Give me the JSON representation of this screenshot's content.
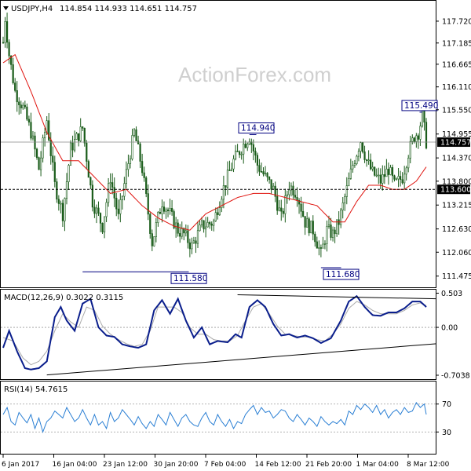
{
  "window": {
    "symbol_header": "USDJPY,H4",
    "ohlc": "114.854 114.933 114.651 114.757",
    "watermark": "ActionForex.com"
  },
  "chart_data": [
    {
      "type": "candlestick",
      "title": "USDJPY,H4",
      "ohlc_text": "114.854 114.933 114.651 114.757",
      "ylim": [
        111.2,
        118.2
      ],
      "y_ticks": [
        "117.720",
        "117.185",
        "116.665",
        "116.110",
        "115.550",
        "114.955",
        "114.370",
        "113.800",
        "113.215",
        "112.630",
        "112.060",
        "111.475"
      ],
      "x_ticks": [
        "6 Jan 2017",
        "16 Jan 04:00",
        "23 Jan 12:00",
        "30 Jan 20:00",
        "7 Feb 04:00",
        "14 Feb 12:00",
        "21 Feb 20:00",
        "1 Mar 04:00",
        "8 Mar 12:00"
      ],
      "price_anchors": [
        [
          0,
          117.2
        ],
        [
          1,
          117.8
        ],
        [
          3,
          116.9
        ],
        [
          6,
          116.0
        ],
        [
          10,
          115.6
        ],
        [
          14,
          115.0
        ],
        [
          18,
          114.1
        ],
        [
          22,
          115.3
        ],
        [
          26,
          113.7
        ],
        [
          30,
          113.0
        ],
        [
          34,
          114.6
        ],
        [
          40,
          115.1
        ],
        [
          45,
          113.3
        ],
        [
          50,
          112.7
        ],
        [
          54,
          113.9
        ],
        [
          58,
          112.9
        ],
        [
          62,
          114.0
        ],
        [
          66,
          115.0
        ],
        [
          70,
          114.1
        ],
        [
          75,
          112.3
        ],
        [
          80,
          113.3
        ],
        [
          84,
          113.0
        ],
        [
          88,
          112.6
        ],
        [
          91,
          112.5
        ],
        [
          95,
          112.2
        ],
        [
          100,
          112.7
        ],
        [
          106,
          112.8
        ],
        [
          110,
          113.5
        ],
        [
          116,
          114.3
        ],
        [
          121,
          114.7
        ],
        [
          124,
          114.9
        ],
        [
          128,
          114.2
        ],
        [
          132,
          113.9
        ],
        [
          136,
          113.6
        ],
        [
          140,
          112.9
        ],
        [
          144,
          113.7
        ],
        [
          148,
          113.5
        ],
        [
          152,
          112.8
        ],
        [
          156,
          112.6
        ],
        [
          160,
          112.0
        ],
        [
          163,
          112.6
        ],
        [
          166,
          112.5
        ],
        [
          169,
          112.8
        ],
        [
          173,
          113.6
        ],
        [
          176,
          114.2
        ],
        [
          180,
          114.8
        ],
        [
          183,
          114.3
        ],
        [
          186,
          114.0
        ],
        [
          190,
          113.8
        ],
        [
          194,
          114.1
        ],
        [
          197,
          113.7
        ],
        [
          201,
          113.9
        ],
        [
          204,
          114.5
        ],
        [
          207,
          114.9
        ],
        [
          209,
          115.0
        ],
        [
          211,
          115.4
        ],
        [
          213,
          114.76
        ]
      ],
      "ma_anchors": [
        [
          0,
          116.7
        ],
        [
          6,
          116.9
        ],
        [
          14,
          116.0
        ],
        [
          22,
          115.0
        ],
        [
          30,
          114.3
        ],
        [
          38,
          114.3
        ],
        [
          46,
          113.9
        ],
        [
          54,
          113.5
        ],
        [
          62,
          113.6
        ],
        [
          70,
          113.2
        ],
        [
          78,
          112.9
        ],
        [
          86,
          112.7
        ],
        [
          94,
          112.6
        ],
        [
          102,
          113.0
        ],
        [
          110,
          113.2
        ],
        [
          118,
          113.4
        ],
        [
          126,
          113.5
        ],
        [
          134,
          113.5
        ],
        [
          142,
          113.4
        ],
        [
          150,
          113.3
        ],
        [
          158,
          113.2
        ],
        [
          166,
          112.8
        ],
        [
          172,
          112.8
        ],
        [
          178,
          113.3
        ],
        [
          184,
          113.7
        ],
        [
          190,
          113.7
        ],
        [
          196,
          113.6
        ],
        [
          202,
          113.6
        ],
        [
          208,
          113.8
        ],
        [
          213,
          114.15
        ]
      ],
      "annotations": [
        {
          "label": "111.580",
          "price": 111.58
        },
        {
          "label": "114.940",
          "price": 114.94
        },
        {
          "label": "111.680",
          "price": 111.68
        },
        {
          "label": "115.490",
          "price": 115.49
        }
      ],
      "current_price": "114.757",
      "support_level": "113.600"
    },
    {
      "type": "line",
      "title": "MACD(12,26,9) 0.3022 0.3115",
      "ylim": [
        -0.75,
        0.52
      ],
      "y_ticks": [
        "0.503",
        "0.00",
        "-0.7038"
      ],
      "macd_anchors": [
        [
          0,
          -0.3
        ],
        [
          3,
          -0.05
        ],
        [
          7,
          -0.35
        ],
        [
          11,
          -0.6
        ],
        [
          14,
          -0.62
        ],
        [
          18,
          -0.6
        ],
        [
          22,
          -0.5
        ],
        [
          26,
          0.15
        ],
        [
          29,
          0.3
        ],
        [
          32,
          0.1
        ],
        [
          36,
          -0.05
        ],
        [
          40,
          0.35
        ],
        [
          44,
          0.42
        ],
        [
          48,
          0.0
        ],
        [
          52,
          -0.12
        ],
        [
          56,
          -0.14
        ],
        [
          60,
          -0.25
        ],
        [
          64,
          -0.28
        ],
        [
          68,
          -0.3
        ],
        [
          72,
          -0.25
        ],
        [
          76,
          0.25
        ],
        [
          80,
          0.4
        ],
        [
          84,
          0.2
        ],
        [
          88,
          0.42
        ],
        [
          92,
          0.1
        ],
        [
          96,
          -0.15
        ],
        [
          100,
          0.0
        ],
        [
          104,
          -0.25
        ],
        [
          108,
          -0.2
        ],
        [
          113,
          -0.22
        ],
        [
          117,
          -0.1
        ],
        [
          120,
          -0.15
        ],
        [
          124,
          0.3
        ],
        [
          128,
          0.4
        ],
        [
          132,
          0.3
        ],
        [
          136,
          0.05
        ],
        [
          140,
          -0.12
        ],
        [
          144,
          -0.1
        ],
        [
          148,
          -0.15
        ],
        [
          152,
          -0.12
        ],
        [
          156,
          -0.16
        ],
        [
          160,
          -0.23
        ],
        [
          165,
          -0.16
        ],
        [
          170,
          0.1
        ],
        [
          174,
          0.38
        ],
        [
          178,
          0.46
        ],
        [
          182,
          0.3
        ],
        [
          186,
          0.18
        ],
        [
          190,
          0.17
        ],
        [
          194,
          0.22
        ],
        [
          198,
          0.22
        ],
        [
          202,
          0.28
        ],
        [
          206,
          0.38
        ],
        [
          210,
          0.38
        ],
        [
          213,
          0.3
        ]
      ],
      "signal_anchors": [
        [
          0,
          -0.15
        ],
        [
          5,
          -0.2
        ],
        [
          10,
          -0.45
        ],
        [
          14,
          -0.55
        ],
        [
          18,
          -0.5
        ],
        [
          22,
          -0.35
        ],
        [
          26,
          -0.05
        ],
        [
          30,
          0.2
        ],
        [
          34,
          0.08
        ],
        [
          38,
          0.0
        ],
        [
          42,
          0.3
        ],
        [
          46,
          0.25
        ],
        [
          50,
          0.02
        ],
        [
          54,
          -0.1
        ],
        [
          58,
          -0.18
        ],
        [
          62,
          -0.24
        ],
        [
          66,
          -0.28
        ],
        [
          70,
          -0.25
        ],
        [
          74,
          -0.05
        ],
        [
          78,
          0.3
        ],
        [
          82,
          0.3
        ],
        [
          86,
          0.3
        ],
        [
          90,
          0.22
        ],
        [
          94,
          0.0
        ],
        [
          98,
          -0.1
        ],
        [
          102,
          -0.1
        ],
        [
          106,
          -0.18
        ],
        [
          110,
          -0.2
        ],
        [
          114,
          -0.2
        ],
        [
          118,
          -0.12
        ],
        [
          122,
          0.1
        ],
        [
          126,
          0.3
        ],
        [
          130,
          0.35
        ],
        [
          134,
          0.2
        ],
        [
          138,
          0.02
        ],
        [
          142,
          -0.1
        ],
        [
          146,
          -0.12
        ],
        [
          150,
          -0.14
        ],
        [
          154,
          -0.14
        ],
        [
          158,
          -0.18
        ],
        [
          162,
          -0.2
        ],
        [
          166,
          -0.1
        ],
        [
          170,
          0.05
        ],
        [
          174,
          0.28
        ],
        [
          178,
          0.38
        ],
        [
          182,
          0.33
        ],
        [
          186,
          0.25
        ],
        [
          190,
          0.2
        ],
        [
          194,
          0.2
        ],
        [
          198,
          0.2
        ],
        [
          202,
          0.25
        ],
        [
          206,
          0.33
        ],
        [
          210,
          0.36
        ],
        [
          213,
          0.32
        ]
      ],
      "trendlines": [
        [
          [
            22,
            -0.7
          ],
          [
            213,
            -0.24
          ]
        ],
        [
          [
            118,
            0.48
          ],
          [
            213,
            0.42
          ]
        ]
      ]
    },
    {
      "type": "line",
      "title": "RSI(14) 54.7615",
      "ylim": [
        0,
        100
      ],
      "y_ticks": [
        "70",
        "30"
      ],
      "rsi_anchors": [
        [
          0,
          55
        ],
        [
          2,
          65
        ],
        [
          4,
          45
        ],
        [
          6,
          40
        ],
        [
          8,
          58
        ],
        [
          10,
          50
        ],
        [
          12,
          43
        ],
        [
          14,
          55
        ],
        [
          16,
          35
        ],
        [
          18,
          50
        ],
        [
          20,
          30
        ],
        [
          22,
          45
        ],
        [
          24,
          50
        ],
        [
          26,
          60
        ],
        [
          28,
          55
        ],
        [
          30,
          50
        ],
        [
          32,
          65
        ],
        [
          34,
          55
        ],
        [
          36,
          45
        ],
        [
          38,
          50
        ],
        [
          40,
          62
        ],
        [
          42,
          50
        ],
        [
          44,
          40
        ],
        [
          46,
          55
        ],
        [
          48,
          40
        ],
        [
          50,
          45
        ],
        [
          52,
          35
        ],
        [
          54,
          58
        ],
        [
          56,
          45
        ],
        [
          58,
          50
        ],
        [
          60,
          62
        ],
        [
          62,
          55
        ],
        [
          64,
          48
        ],
        [
          66,
          40
        ],
        [
          68,
          52
        ],
        [
          70,
          42
        ],
        [
          72,
          35
        ],
        [
          74,
          45
        ],
        [
          76,
          38
        ],
        [
          78,
          55
        ],
        [
          80,
          48
        ],
        [
          82,
          40
        ],
        [
          84,
          58
        ],
        [
          86,
          48
        ],
        [
          88,
          38
        ],
        [
          90,
          50
        ],
        [
          92,
          55
        ],
        [
          94,
          45
        ],
        [
          96,
          40
        ],
        [
          98,
          38
        ],
        [
          100,
          50
        ],
        [
          102,
          58
        ],
        [
          104,
          45
        ],
        [
          106,
          40
        ],
        [
          108,
          55
        ],
        [
          110,
          45
        ],
        [
          112,
          38
        ],
        [
          114,
          48
        ],
        [
          116,
          35
        ],
        [
          118,
          45
        ],
        [
          120,
          42
        ],
        [
          122,
          55
        ],
        [
          124,
          62
        ],
        [
          126,
          68
        ],
        [
          128,
          55
        ],
        [
          130,
          65
        ],
        [
          132,
          58
        ],
        [
          134,
          60
        ],
        [
          136,
          50
        ],
        [
          138,
          55
        ],
        [
          140,
          62
        ],
        [
          142,
          60
        ],
        [
          144,
          50
        ],
        [
          146,
          45
        ],
        [
          148,
          55
        ],
        [
          150,
          48
        ],
        [
          152,
          40
        ],
        [
          154,
          50
        ],
        [
          156,
          45
        ],
        [
          158,
          38
        ],
        [
          160,
          52
        ],
        [
          162,
          45
        ],
        [
          164,
          40
        ],
        [
          166,
          45
        ],
        [
          168,
          42
        ],
        [
          170,
          48
        ],
        [
          172,
          40
        ],
        [
          174,
          60
        ],
        [
          176,
          55
        ],
        [
          178,
          68
        ],
        [
          180,
          62
        ],
        [
          182,
          70
        ],
        [
          184,
          65
        ],
        [
          186,
          58
        ],
        [
          188,
          68
        ],
        [
          190,
          55
        ],
        [
          192,
          62
        ],
        [
          194,
          50
        ],
        [
          196,
          58
        ],
        [
          198,
          62
        ],
        [
          200,
          55
        ],
        [
          202,
          65
        ],
        [
          204,
          58
        ],
        [
          206,
          60
        ],
        [
          208,
          72
        ],
        [
          210,
          65
        ],
        [
          212,
          70
        ],
        [
          213,
          55
        ]
      ]
    }
  ]
}
